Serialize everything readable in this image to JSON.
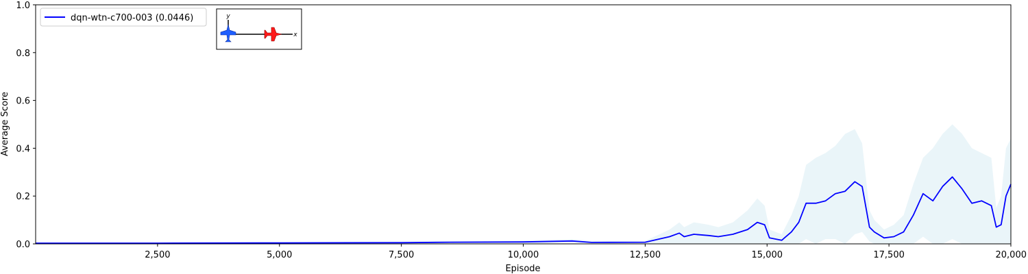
{
  "chart_data": {
    "type": "line",
    "xlabel": "Episode",
    "ylabel": "Average Score",
    "xlim": [
      0,
      20000
    ],
    "ylim": [
      0,
      1.0
    ],
    "x_ticks": [
      2500,
      5000,
      7500,
      10000,
      12500,
      15000,
      17500,
      20000
    ],
    "x_tick_labels": [
      "2,500",
      "5,000",
      "7,500",
      "10,000",
      "12,500",
      "15,000",
      "17,500",
      "20,000"
    ],
    "y_ticks": [
      0,
      0.2,
      0.4,
      0.6,
      0.8,
      1.0
    ],
    "y_tick_labels": [
      "0.0",
      "0.2",
      "0.4",
      "0.6",
      "0.8",
      "1.0"
    ],
    "grid": false,
    "legend_position": "top-left",
    "series": [
      {
        "name": "dqn-wtn-c700-003 (0.0446)",
        "color": "#0000ff",
        "band_color": "#add8e6",
        "x": [
          0,
          2500,
          5000,
          7500,
          8500,
          10000,
          11000,
          11400,
          12500,
          13000,
          13200,
          13300,
          13500,
          13800,
          14000,
          14300,
          14600,
          14800,
          14950,
          15050,
          15300,
          15500,
          15650,
          15800,
          16000,
          16200,
          16400,
          16600,
          16800,
          16950,
          17100,
          17200,
          17400,
          17600,
          17800,
          18000,
          18200,
          18400,
          18600,
          18800,
          19000,
          19200,
          19400,
          19600,
          19700,
          19800,
          19900,
          20000
        ],
        "values": [
          0.003,
          0.003,
          0.004,
          0.005,
          0.007,
          0.008,
          0.012,
          0.006,
          0.007,
          0.03,
          0.045,
          0.03,
          0.04,
          0.035,
          0.03,
          0.04,
          0.06,
          0.09,
          0.08,
          0.025,
          0.015,
          0.05,
          0.09,
          0.17,
          0.17,
          0.18,
          0.21,
          0.22,
          0.26,
          0.24,
          0.07,
          0.05,
          0.025,
          0.03,
          0.05,
          0.12,
          0.21,
          0.18,
          0.24,
          0.28,
          0.23,
          0.17,
          0.18,
          0.16,
          0.07,
          0.08,
          0.2,
          0.25
        ],
        "lower": [
          0.0,
          0.0,
          0.0,
          0.0,
          0.0,
          0.0,
          0.005,
          0.002,
          0.002,
          0.0,
          0.0,
          0.0,
          0.0,
          0.0,
          0.0,
          0.0,
          0.0,
          0.0,
          0.0,
          0.0,
          0.0,
          0.0,
          0.0,
          0.02,
          0.0,
          0.02,
          0.02,
          0.0,
          0.04,
          0.05,
          0.01,
          0.0,
          0.0,
          0.0,
          0.0,
          0.0,
          0.03,
          0.0,
          0.0,
          0.02,
          0.0,
          0.0,
          0.0,
          0.0,
          0.0,
          0.0,
          0.0,
          0.0
        ],
        "upper": [
          0.006,
          0.006,
          0.008,
          0.01,
          0.012,
          0.014,
          0.02,
          0.012,
          0.012,
          0.06,
          0.09,
          0.07,
          0.09,
          0.08,
          0.07,
          0.09,
          0.14,
          0.19,
          0.16,
          0.06,
          0.04,
          0.12,
          0.2,
          0.33,
          0.36,
          0.38,
          0.41,
          0.46,
          0.48,
          0.42,
          0.14,
          0.1,
          0.06,
          0.08,
          0.12,
          0.25,
          0.36,
          0.4,
          0.46,
          0.5,
          0.46,
          0.4,
          0.38,
          0.36,
          0.15,
          0.2,
          0.4,
          0.44
        ]
      }
    ]
  },
  "legend": {
    "label": "dqn-wtn-c700-003 (0.0446)"
  },
  "inset": {
    "y_axis_label": "y",
    "x_axis_label": "x",
    "friendly_color": "#1f5fff",
    "enemy_color": "#ff1a1a"
  }
}
